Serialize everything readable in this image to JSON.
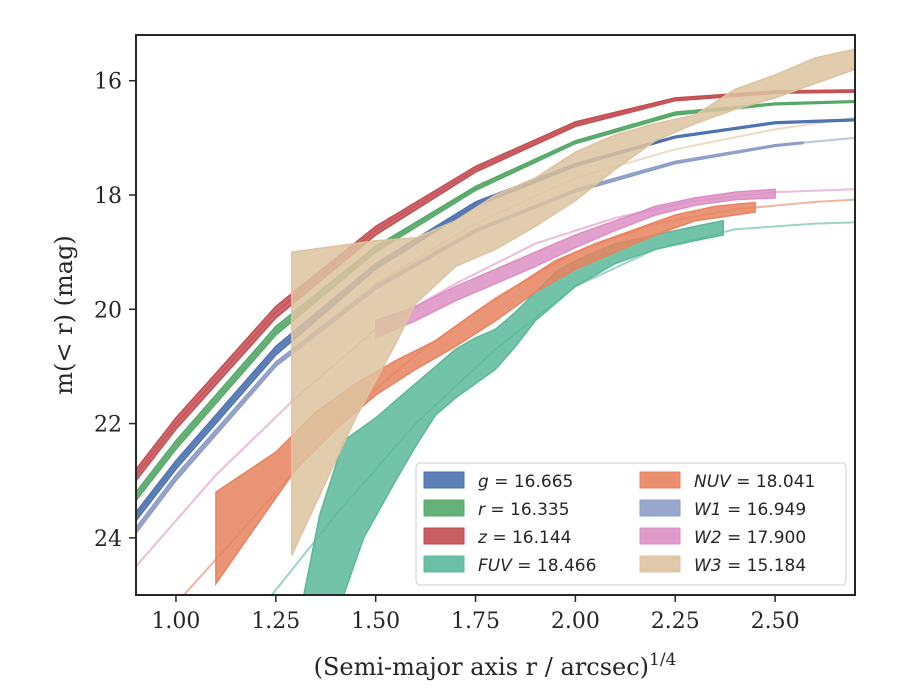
{
  "chart_data": {
    "type": "area",
    "title": "",
    "xlabel": "(Semi-major axis r / arcsec)",
    "xlabel_superscript": "1/4",
    "ylabel": "m(< r) (mag)",
    "xlim": [
      0.9,
      2.7
    ],
    "ylim": [
      25.0,
      15.2
    ],
    "y_inverted": true,
    "grid": false,
    "legend_position": "lower-right",
    "x_ticks": [
      1.0,
      1.25,
      1.5,
      1.75,
      2.0,
      2.25,
      2.5
    ],
    "x_tick_labels": [
      "1.00",
      "1.25",
      "1.50",
      "1.75",
      "2.00",
      "2.25",
      "2.50"
    ],
    "y_ticks": [
      16,
      18,
      20,
      22,
      24
    ],
    "y_tick_labels": [
      "16",
      "18",
      "20",
      "22",
      "24"
    ],
    "series": [
      {
        "name": "g = 16.665",
        "band": "g",
        "magnitude": "16.665",
        "italic_band": true,
        "color": "#4c72b0",
        "upper": [
          [
            0.9,
            23.7
          ],
          [
            1.0,
            22.8
          ],
          [
            1.25,
            20.8
          ],
          [
            1.5,
            19.3
          ],
          [
            1.75,
            18.2
          ],
          [
            2.0,
            17.5
          ],
          [
            2.25,
            17.0
          ],
          [
            2.5,
            16.75
          ],
          [
            2.7,
            16.7
          ]
        ],
        "lower": [
          [
            0.9,
            23.55
          ],
          [
            1.0,
            22.65
          ],
          [
            1.25,
            20.65
          ],
          [
            1.5,
            19.2
          ],
          [
            1.75,
            18.12
          ],
          [
            2.0,
            17.45
          ],
          [
            2.25,
            16.97
          ],
          [
            2.5,
            16.72
          ],
          [
            2.7,
            16.67
          ]
        ],
        "fit": [
          [
            0.9,
            23.62
          ],
          [
            1.0,
            22.72
          ],
          [
            1.25,
            20.72
          ],
          [
            1.5,
            19.25
          ],
          [
            1.75,
            18.16
          ],
          [
            2.0,
            17.48
          ],
          [
            2.25,
            16.98
          ],
          [
            2.5,
            16.73
          ],
          [
            2.7,
            16.68
          ]
        ],
        "measured_until": 2.7
      },
      {
        "name": "r = 16.335",
        "band": "r",
        "magnitude": "16.335",
        "italic_band": true,
        "color": "#55a868",
        "upper": [
          [
            0.9,
            23.35
          ],
          [
            1.0,
            22.45
          ],
          [
            1.25,
            20.45
          ],
          [
            1.5,
            19.0
          ],
          [
            1.75,
            17.92
          ],
          [
            2.0,
            17.1
          ],
          [
            2.25,
            16.6
          ],
          [
            2.5,
            16.42
          ],
          [
            2.7,
            16.38
          ]
        ],
        "lower": [
          [
            0.9,
            23.2
          ],
          [
            1.0,
            22.3
          ],
          [
            1.25,
            20.3
          ],
          [
            1.5,
            18.9
          ],
          [
            1.75,
            17.85
          ],
          [
            2.0,
            17.05
          ],
          [
            2.25,
            16.55
          ],
          [
            2.5,
            16.39
          ],
          [
            2.7,
            16.35
          ]
        ],
        "fit": [
          [
            0.9,
            23.28
          ],
          [
            1.0,
            22.38
          ],
          [
            1.25,
            20.38
          ],
          [
            1.5,
            18.95
          ],
          [
            1.75,
            17.88
          ],
          [
            2.0,
            17.08
          ],
          [
            2.25,
            16.58
          ],
          [
            2.5,
            16.4
          ],
          [
            2.7,
            16.36
          ]
        ],
        "measured_until": 2.7
      },
      {
        "name": "z = 16.144",
        "band": "z",
        "magnitude": "16.144",
        "italic_band": true,
        "color": "#c44e52",
        "upper": [
          [
            0.9,
            23.0
          ],
          [
            1.0,
            22.1
          ],
          [
            1.25,
            20.15
          ],
          [
            1.5,
            18.7
          ],
          [
            1.75,
            17.6
          ],
          [
            2.0,
            16.8
          ],
          [
            2.25,
            16.35
          ],
          [
            2.5,
            16.22
          ],
          [
            2.7,
            16.2
          ]
        ],
        "lower": [
          [
            0.9,
            22.8
          ],
          [
            1.0,
            21.9
          ],
          [
            1.25,
            19.95
          ],
          [
            1.5,
            18.55
          ],
          [
            1.75,
            17.5
          ],
          [
            2.0,
            16.72
          ],
          [
            2.25,
            16.3
          ],
          [
            2.5,
            16.18
          ],
          [
            2.7,
            16.16
          ]
        ],
        "fit": [
          [
            0.9,
            22.9
          ],
          [
            1.0,
            22.0
          ],
          [
            1.25,
            20.05
          ],
          [
            1.5,
            18.62
          ],
          [
            1.75,
            17.55
          ],
          [
            2.0,
            16.76
          ],
          [
            2.25,
            16.32
          ],
          [
            2.5,
            16.2
          ],
          [
            2.7,
            16.18
          ]
        ],
        "measured_until": 2.7
      },
      {
        "name": "FUV = 18.466",
        "band": "FUV",
        "magnitude": "18.466",
        "italic_band": true,
        "color": "#5bb89a",
        "upper": [
          [
            1.32,
            25.0
          ],
          [
            1.36,
            23.6
          ],
          [
            1.42,
            22.3
          ],
          [
            1.5,
            21.9
          ],
          [
            1.55,
            21.6
          ],
          [
            1.6,
            21.3
          ],
          [
            1.65,
            21.0
          ],
          [
            1.7,
            20.7
          ],
          [
            1.75,
            20.5
          ],
          [
            1.8,
            20.35
          ],
          [
            1.85,
            20.05
          ],
          [
            1.9,
            19.7
          ],
          [
            1.95,
            19.35
          ],
          [
            2.0,
            19.15
          ],
          [
            2.05,
            19.0
          ],
          [
            2.1,
            18.85
          ],
          [
            2.2,
            18.7
          ],
          [
            2.3,
            18.55
          ],
          [
            2.37,
            18.45
          ]
        ],
        "lower": [
          [
            1.42,
            25.0
          ],
          [
            1.47,
            24.0
          ],
          [
            1.55,
            23.0
          ],
          [
            1.6,
            22.4
          ],
          [
            1.65,
            21.85
          ],
          [
            1.7,
            21.55
          ],
          [
            1.75,
            21.3
          ],
          [
            1.8,
            21.05
          ],
          [
            1.85,
            20.65
          ],
          [
            1.9,
            20.2
          ],
          [
            1.95,
            19.9
          ],
          [
            2.0,
            19.6
          ],
          [
            2.05,
            19.4
          ],
          [
            2.1,
            19.2
          ],
          [
            2.2,
            18.95
          ],
          [
            2.3,
            18.8
          ],
          [
            2.37,
            18.7
          ]
        ],
        "fit": [
          [
            1.24,
            25.0
          ],
          [
            1.4,
            23.6
          ],
          [
            1.6,
            22.0
          ],
          [
            1.8,
            20.7
          ],
          [
            2.0,
            19.6
          ],
          [
            2.2,
            18.95
          ],
          [
            2.4,
            18.6
          ],
          [
            2.6,
            18.5
          ],
          [
            2.7,
            18.48
          ]
        ],
        "measured_until": 2.37
      },
      {
        "name": "NUV = 18.041",
        "band": "NUV",
        "magnitude": "18.041",
        "italic_band": true,
        "color": "#e8835f",
        "upper": [
          [
            1.1,
            23.2
          ],
          [
            1.25,
            22.5
          ],
          [
            1.35,
            21.8
          ],
          [
            1.45,
            21.3
          ],
          [
            1.55,
            20.9
          ],
          [
            1.65,
            20.55
          ],
          [
            1.75,
            20.05
          ],
          [
            1.85,
            19.6
          ],
          [
            1.95,
            19.15
          ],
          [
            2.05,
            18.85
          ],
          [
            2.15,
            18.6
          ],
          [
            2.25,
            18.35
          ],
          [
            2.35,
            18.2
          ],
          [
            2.45,
            18.13
          ]
        ],
        "lower": [
          [
            1.1,
            24.8
          ],
          [
            1.2,
            23.8
          ],
          [
            1.3,
            22.8
          ],
          [
            1.4,
            22.1
          ],
          [
            1.5,
            21.5
          ],
          [
            1.6,
            21.05
          ],
          [
            1.7,
            20.65
          ],
          [
            1.8,
            20.2
          ],
          [
            1.9,
            19.7
          ],
          [
            2.0,
            19.3
          ],
          [
            2.1,
            19.0
          ],
          [
            2.2,
            18.7
          ],
          [
            2.3,
            18.45
          ],
          [
            2.45,
            18.3
          ]
        ],
        "fit": [
          [
            1.02,
            25.0
          ],
          [
            1.2,
            23.6
          ],
          [
            1.4,
            22.0
          ],
          [
            1.6,
            20.8
          ],
          [
            1.8,
            19.8
          ],
          [
            2.0,
            19.0
          ],
          [
            2.2,
            18.5
          ],
          [
            2.4,
            18.25
          ],
          [
            2.6,
            18.12
          ],
          [
            2.7,
            18.08
          ]
        ],
        "measured_until": 2.45
      },
      {
        "name": "W1 = 16.949",
        "band": "W1",
        "magnitude": "16.949",
        "italic_band": true,
        "color": "#8e9ec8",
        "upper": [
          [
            0.9,
            23.92
          ],
          [
            1.0,
            23.0
          ],
          [
            1.25,
            21.0
          ],
          [
            1.5,
            19.65
          ],
          [
            1.75,
            18.65
          ],
          [
            2.0,
            17.95
          ],
          [
            2.25,
            17.45
          ],
          [
            2.5,
            17.15
          ],
          [
            2.57,
            17.1
          ]
        ],
        "lower": [
          [
            0.9,
            23.82
          ],
          [
            1.0,
            22.9
          ],
          [
            1.25,
            20.92
          ],
          [
            1.5,
            19.58
          ],
          [
            1.75,
            18.6
          ],
          [
            2.0,
            17.9
          ],
          [
            2.25,
            17.41
          ],
          [
            2.5,
            17.12
          ],
          [
            2.57,
            17.07
          ]
        ],
        "fit": [
          [
            0.9,
            23.87
          ],
          [
            1.0,
            22.95
          ],
          [
            1.25,
            20.96
          ],
          [
            1.5,
            19.62
          ],
          [
            1.75,
            18.62
          ],
          [
            2.0,
            17.92
          ],
          [
            2.25,
            17.43
          ],
          [
            2.5,
            17.13
          ],
          [
            2.7,
            17.0
          ]
        ],
        "measured_until": 2.57
      },
      {
        "name": "W2 = 17.900",
        "band": "W2",
        "magnitude": "17.900",
        "italic_band": true,
        "color": "#dd8fc4",
        "upper": [
          [
            1.5,
            20.2
          ],
          [
            1.6,
            19.95
          ],
          [
            1.7,
            19.6
          ],
          [
            1.8,
            19.3
          ],
          [
            1.9,
            19.0
          ],
          [
            2.0,
            18.7
          ],
          [
            2.1,
            18.45
          ],
          [
            2.2,
            18.2
          ],
          [
            2.3,
            18.05
          ],
          [
            2.4,
            17.95
          ],
          [
            2.5,
            17.9
          ]
        ],
        "lower": [
          [
            1.5,
            20.5
          ],
          [
            1.6,
            20.2
          ],
          [
            1.7,
            19.85
          ],
          [
            1.8,
            19.55
          ],
          [
            1.9,
            19.25
          ],
          [
            2.0,
            18.92
          ],
          [
            2.1,
            18.62
          ],
          [
            2.2,
            18.35
          ],
          [
            2.3,
            18.18
          ],
          [
            2.4,
            18.08
          ],
          [
            2.5,
            18.05
          ]
        ],
        "fit": [
          [
            0.9,
            24.5
          ],
          [
            1.1,
            22.9
          ],
          [
            1.3,
            21.55
          ],
          [
            1.5,
            20.35
          ],
          [
            1.7,
            19.55
          ],
          [
            1.9,
            18.85
          ],
          [
            2.1,
            18.4
          ],
          [
            2.3,
            18.1
          ],
          [
            2.5,
            17.95
          ],
          [
            2.7,
            17.9
          ]
        ],
        "measured_until": 2.5
      },
      {
        "name": "W3 = 15.184",
        "band": "W3",
        "magnitude": "15.184",
        "italic_band": true,
        "color": "#ddc3a0",
        "upper": [
          [
            1.29,
            19.0
          ],
          [
            1.5,
            18.8
          ],
          [
            1.6,
            18.75
          ],
          [
            1.7,
            18.45
          ],
          [
            1.8,
            18.0
          ],
          [
            1.9,
            17.7
          ],
          [
            2.0,
            17.25
          ],
          [
            2.1,
            16.95
          ],
          [
            2.2,
            16.75
          ],
          [
            2.3,
            16.6
          ],
          [
            2.4,
            16.15
          ],
          [
            2.5,
            15.9
          ],
          [
            2.6,
            15.6
          ],
          [
            2.7,
            15.45
          ]
        ],
        "lower": [
          [
            1.29,
            24.3
          ],
          [
            1.35,
            23.4
          ],
          [
            1.45,
            21.9
          ],
          [
            1.55,
            20.6
          ],
          [
            1.6,
            19.9
          ],
          [
            1.7,
            19.25
          ],
          [
            1.8,
            18.95
          ],
          [
            1.9,
            18.55
          ],
          [
            2.0,
            18.1
          ],
          [
            2.1,
            17.55
          ],
          [
            2.2,
            17.05
          ],
          [
            2.3,
            16.75
          ],
          [
            2.4,
            16.5
          ],
          [
            2.5,
            16.3
          ],
          [
            2.6,
            16.05
          ],
          [
            2.7,
            15.8
          ]
        ],
        "fit": [
          [
            0.9,
            23.9
          ],
          [
            1.0,
            23.0
          ],
          [
            1.25,
            21.0
          ],
          [
            1.5,
            19.55
          ],
          [
            1.75,
            18.5
          ],
          [
            2.0,
            17.7
          ],
          [
            2.25,
            17.2
          ],
          [
            2.5,
            16.85
          ],
          [
            2.7,
            16.65
          ]
        ],
        "measured_until": 2.7
      }
    ]
  }
}
